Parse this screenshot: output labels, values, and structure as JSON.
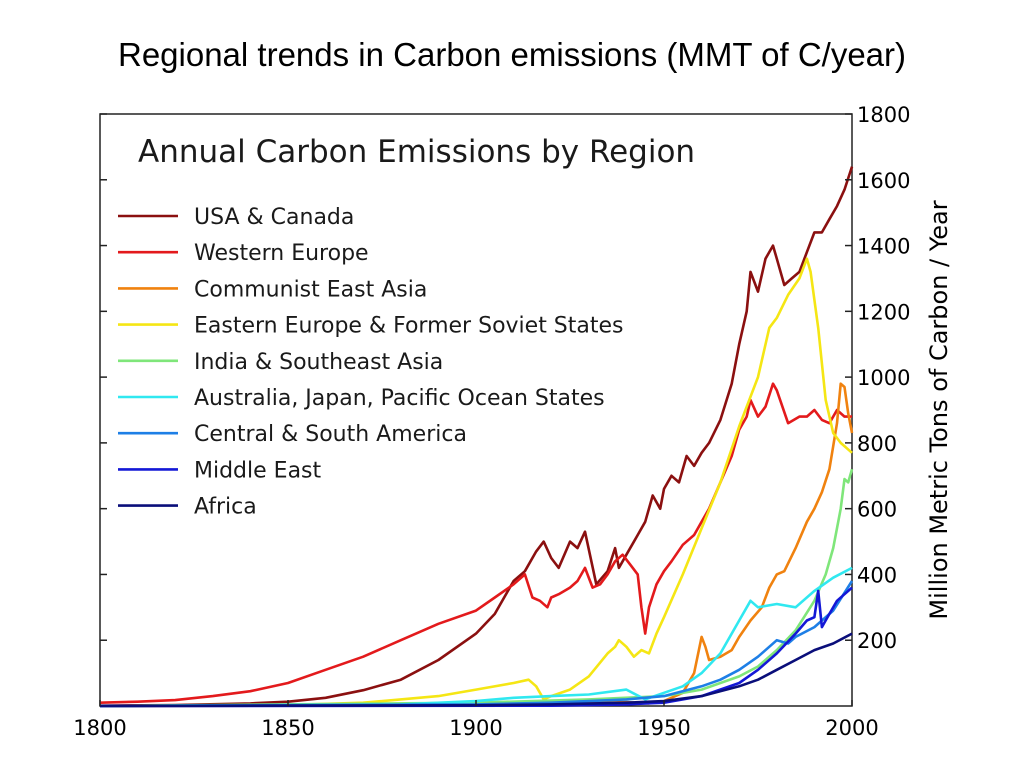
{
  "slide": {
    "title": "Regional trends in Carbon emissions (MMT of C/year)"
  },
  "chart_data": {
    "type": "line",
    "title": "Annual Carbon Emissions by Region",
    "xlabel": "",
    "ylabel": "Million Metric Tons of Carbon / Year",
    "xlim": [
      1800,
      2000
    ],
    "ylim": [
      0,
      1800
    ],
    "x_ticks": [
      1800,
      1850,
      1900,
      1950,
      2000
    ],
    "y_ticks": [
      200,
      400,
      600,
      800,
      1000,
      1200,
      1400,
      1600,
      1800
    ],
    "y_axis_side": "right",
    "grid": false,
    "legend_position": "top-left",
    "series": [
      {
        "name": "USA & Canada",
        "color": "#8b1010",
        "points": [
          [
            1800,
            1
          ],
          [
            1820,
            3
          ],
          [
            1840,
            8
          ],
          [
            1850,
            13
          ],
          [
            1860,
            25
          ],
          [
            1870,
            48
          ],
          [
            1880,
            80
          ],
          [
            1890,
            140
          ],
          [
            1900,
            220
          ],
          [
            1905,
            280
          ],
          [
            1910,
            380
          ],
          [
            1913,
            410
          ],
          [
            1916,
            470
          ],
          [
            1918,
            500
          ],
          [
            1920,
            450
          ],
          [
            1922,
            420
          ],
          [
            1925,
            500
          ],
          [
            1927,
            480
          ],
          [
            1929,
            530
          ],
          [
            1932,
            370
          ],
          [
            1935,
            410
          ],
          [
            1937,
            480
          ],
          [
            1938,
            420
          ],
          [
            1940,
            460
          ],
          [
            1943,
            520
          ],
          [
            1945,
            560
          ],
          [
            1947,
            640
          ],
          [
            1949,
            600
          ],
          [
            1950,
            660
          ],
          [
            1952,
            700
          ],
          [
            1954,
            680
          ],
          [
            1956,
            760
          ],
          [
            1958,
            730
          ],
          [
            1960,
            770
          ],
          [
            1962,
            800
          ],
          [
            1965,
            870
          ],
          [
            1968,
            980
          ],
          [
            1970,
            1100
          ],
          [
            1972,
            1200
          ],
          [
            1973,
            1320
          ],
          [
            1975,
            1260
          ],
          [
            1977,
            1360
          ],
          [
            1979,
            1400
          ],
          [
            1980,
            1360
          ],
          [
            1982,
            1280
          ],
          [
            1984,
            1300
          ],
          [
            1986,
            1320
          ],
          [
            1988,
            1380
          ],
          [
            1990,
            1440
          ],
          [
            1992,
            1440
          ],
          [
            1994,
            1480
          ],
          [
            1996,
            1520
          ],
          [
            1998,
            1570
          ],
          [
            2000,
            1640
          ]
        ]
      },
      {
        "name": "Western Europe",
        "color": "#e31a1c",
        "points": [
          [
            1800,
            10
          ],
          [
            1810,
            13
          ],
          [
            1820,
            18
          ],
          [
            1830,
            30
          ],
          [
            1840,
            45
          ],
          [
            1850,
            70
          ],
          [
            1860,
            110
          ],
          [
            1870,
            150
          ],
          [
            1880,
            200
          ],
          [
            1890,
            250
          ],
          [
            1900,
            290
          ],
          [
            1905,
            330
          ],
          [
            1910,
            370
          ],
          [
            1913,
            400
          ],
          [
            1915,
            330
          ],
          [
            1917,
            320
          ],
          [
            1919,
            300
          ],
          [
            1920,
            330
          ],
          [
            1922,
            340
          ],
          [
            1925,
            360
          ],
          [
            1927,
            380
          ],
          [
            1929,
            420
          ],
          [
            1931,
            360
          ],
          [
            1933,
            370
          ],
          [
            1935,
            400
          ],
          [
            1937,
            440
          ],
          [
            1939,
            460
          ],
          [
            1941,
            430
          ],
          [
            1943,
            400
          ],
          [
            1944,
            300
          ],
          [
            1945,
            220
          ],
          [
            1946,
            300
          ],
          [
            1948,
            370
          ],
          [
            1950,
            410
          ],
          [
            1952,
            440
          ],
          [
            1955,
            490
          ],
          [
            1958,
            520
          ],
          [
            1960,
            560
          ],
          [
            1962,
            600
          ],
          [
            1965,
            680
          ],
          [
            1968,
            760
          ],
          [
            1970,
            840
          ],
          [
            1972,
            880
          ],
          [
            1973,
            930
          ],
          [
            1975,
            880
          ],
          [
            1977,
            910
          ],
          [
            1979,
            980
          ],
          [
            1980,
            960
          ],
          [
            1983,
            860
          ],
          [
            1986,
            880
          ],
          [
            1988,
            880
          ],
          [
            1990,
            900
          ],
          [
            1992,
            870
          ],
          [
            1994,
            860
          ],
          [
            1996,
            900
          ],
          [
            1998,
            880
          ],
          [
            2000,
            880
          ]
        ]
      },
      {
        "name": "Communist East Asia",
        "color": "#f0820f",
        "points": [
          [
            1800,
            0
          ],
          [
            1900,
            2
          ],
          [
            1920,
            5
          ],
          [
            1940,
            12
          ],
          [
            1946,
            8
          ],
          [
            1950,
            15
          ],
          [
            1955,
            40
          ],
          [
            1958,
            100
          ],
          [
            1960,
            210
          ],
          [
            1961,
            180
          ],
          [
            1962,
            140
          ],
          [
            1965,
            150
          ],
          [
            1968,
            170
          ],
          [
            1970,
            210
          ],
          [
            1973,
            260
          ],
          [
            1976,
            300
          ],
          [
            1978,
            360
          ],
          [
            1980,
            400
          ],
          [
            1982,
            410
          ],
          [
            1985,
            480
          ],
          [
            1988,
            560
          ],
          [
            1990,
            600
          ],
          [
            1992,
            650
          ],
          [
            1994,
            720
          ],
          [
            1996,
            860
          ],
          [
            1997,
            980
          ],
          [
            1998,
            970
          ],
          [
            1999,
            890
          ],
          [
            2000,
            830
          ]
        ]
      },
      {
        "name": "Eastern Europe & Former Soviet States",
        "color": "#f5e614",
        "points": [
          [
            1800,
            0
          ],
          [
            1850,
            3
          ],
          [
            1870,
            10
          ],
          [
            1890,
            30
          ],
          [
            1900,
            50
          ],
          [
            1910,
            70
          ],
          [
            1914,
            80
          ],
          [
            1916,
            60
          ],
          [
            1918,
            20
          ],
          [
            1920,
            30
          ],
          [
            1925,
            50
          ],
          [
            1930,
            90
          ],
          [
            1935,
            160
          ],
          [
            1937,
            180
          ],
          [
            1938,
            200
          ],
          [
            1940,
            180
          ],
          [
            1942,
            150
          ],
          [
            1944,
            170
          ],
          [
            1946,
            160
          ],
          [
            1948,
            220
          ],
          [
            1950,
            270
          ],
          [
            1955,
            400
          ],
          [
            1960,
            540
          ],
          [
            1965,
            680
          ],
          [
            1970,
            850
          ],
          [
            1975,
            1000
          ],
          [
            1978,
            1150
          ],
          [
            1980,
            1180
          ],
          [
            1983,
            1250
          ],
          [
            1986,
            1300
          ],
          [
            1988,
            1360
          ],
          [
            1989,
            1320
          ],
          [
            1991,
            1150
          ],
          [
            1993,
            930
          ],
          [
            1995,
            830
          ],
          [
            1997,
            800
          ],
          [
            2000,
            770
          ]
        ]
      },
      {
        "name": "India & Southeast Asia",
        "color": "#7fe67a",
        "points": [
          [
            1800,
            0
          ],
          [
            1900,
            10
          ],
          [
            1930,
            20
          ],
          [
            1950,
            30
          ],
          [
            1960,
            50
          ],
          [
            1970,
            90
          ],
          [
            1975,
            120
          ],
          [
            1980,
            170
          ],
          [
            1985,
            230
          ],
          [
            1990,
            320
          ],
          [
            1993,
            400
          ],
          [
            1995,
            480
          ],
          [
            1997,
            600
          ],
          [
            1998,
            690
          ],
          [
            1999,
            680
          ],
          [
            2000,
            720
          ]
        ]
      },
      {
        "name": "Australia, Japan, Pacific Ocean States",
        "color": "#30e8f0",
        "points": [
          [
            1800,
            0
          ],
          [
            1880,
            5
          ],
          [
            1900,
            15
          ],
          [
            1910,
            25
          ],
          [
            1920,
            30
          ],
          [
            1930,
            35
          ],
          [
            1940,
            50
          ],
          [
            1945,
            20
          ],
          [
            1950,
            40
          ],
          [
            1955,
            60
          ],
          [
            1960,
            100
          ],
          [
            1965,
            160
          ],
          [
            1970,
            260
          ],
          [
            1973,
            320
          ],
          [
            1975,
            300
          ],
          [
            1980,
            310
          ],
          [
            1985,
            300
          ],
          [
            1990,
            350
          ],
          [
            1995,
            390
          ],
          [
            2000,
            420
          ]
        ]
      },
      {
        "name": "Central & South America",
        "color": "#1e7fe6",
        "points": [
          [
            1800,
            0
          ],
          [
            1900,
            5
          ],
          [
            1920,
            10
          ],
          [
            1940,
            20
          ],
          [
            1950,
            30
          ],
          [
            1960,
            60
          ],
          [
            1965,
            80
          ],
          [
            1970,
            110
          ],
          [
            1975,
            150
          ],
          [
            1980,
            200
          ],
          [
            1983,
            190
          ],
          [
            1985,
            210
          ],
          [
            1990,
            240
          ],
          [
            1995,
            290
          ],
          [
            2000,
            380
          ]
        ]
      },
      {
        "name": "Middle East",
        "color": "#1418d6",
        "points": [
          [
            1800,
            0
          ],
          [
            1920,
            1
          ],
          [
            1940,
            5
          ],
          [
            1950,
            10
          ],
          [
            1960,
            30
          ],
          [
            1970,
            70
          ],
          [
            1975,
            110
          ],
          [
            1980,
            160
          ],
          [
            1985,
            220
          ],
          [
            1988,
            260
          ],
          [
            1990,
            270
          ],
          [
            1991,
            350
          ],
          [
            1992,
            240
          ],
          [
            1994,
            280
          ],
          [
            1996,
            320
          ],
          [
            1998,
            340
          ],
          [
            2000,
            360
          ]
        ]
      },
      {
        "name": "Africa",
        "color": "#0a0e7a",
        "points": [
          [
            1800,
            0
          ],
          [
            1900,
            2
          ],
          [
            1920,
            5
          ],
          [
            1940,
            10
          ],
          [
            1950,
            15
          ],
          [
            1960,
            30
          ],
          [
            1970,
            60
          ],
          [
            1975,
            80
          ],
          [
            1980,
            110
          ],
          [
            1985,
            140
          ],
          [
            1990,
            170
          ],
          [
            1995,
            190
          ],
          [
            2000,
            220
          ]
        ]
      }
    ]
  }
}
